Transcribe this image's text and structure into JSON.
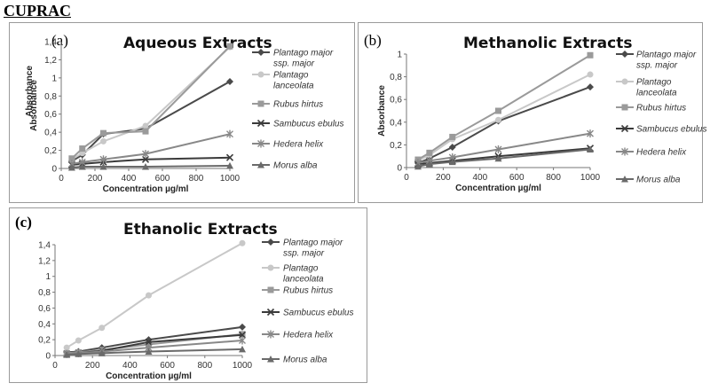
{
  "page_heading": "CUPRAC",
  "chart_data": [
    {
      "type": "line",
      "panel_label": "(a)",
      "title": "Aqueous Extracts",
      "xlabel": "Concentration µg/ml",
      "ylabel": "Absorbance",
      "xlim": [
        0,
        1000
      ],
      "ylim": [
        0,
        1.4
      ],
      "xticks": [
        0,
        200,
        400,
        600,
        800,
        1000
      ],
      "xtick_labels": [
        "0",
        "200",
        "400",
        "600",
        "800",
        "1000"
      ],
      "yticks": [
        0,
        0.2,
        0.4,
        0.6,
        0.8,
        1.0,
        1.2,
        1.4
      ],
      "ytick_labels": [
        "0",
        "0,2",
        "0,4",
        "0,6",
        "0,8",
        "1",
        "1,2",
        "1,4"
      ],
      "grid": false,
      "legend_position": "right",
      "x": [
        62.5,
        125,
        250,
        500,
        1000
      ],
      "series": [
        {
          "name": [
            "Plantago major",
            "ssp. major"
          ],
          "values": [
            0.08,
            0.15,
            0.38,
            0.44,
            0.96
          ],
          "color": "#4a4a4a",
          "marker": "diamond"
        },
        {
          "name": [
            "Plantago",
            "lanceolata"
          ],
          "values": [
            0.1,
            0.17,
            0.3,
            0.47,
            1.34
          ],
          "color": "#c8c8c8",
          "marker": "circle"
        },
        {
          "name": [
            "Rubus hirtus"
          ],
          "values": [
            0.11,
            0.22,
            0.39,
            0.41,
            1.35
          ],
          "color": "#9a9a9a",
          "marker": "square"
        },
        {
          "name": [
            "Sambucus ebulus"
          ],
          "values": [
            0.04,
            0.05,
            0.07,
            0.1,
            0.12
          ],
          "color": "#3a3a3a",
          "marker": "x"
        },
        {
          "name": [
            "Hedera helix"
          ],
          "values": [
            0.05,
            0.07,
            0.1,
            0.16,
            0.38
          ],
          "color": "#888888",
          "marker": "star"
        },
        {
          "name": [
            "Morus alba"
          ],
          "values": [
            0.01,
            0.02,
            0.02,
            0.02,
            0.03
          ],
          "color": "#6a6a6a",
          "marker": "triangle"
        }
      ]
    },
    {
      "type": "line",
      "panel_label": "(b)",
      "title": "Methanolic Extracts",
      "xlabel": "Concentration µg/ml",
      "ylabel": "Absorbance",
      "xlim": [
        0,
        1000
      ],
      "ylim": [
        0,
        1
      ],
      "xticks": [
        0,
        200,
        400,
        600,
        800,
        1000
      ],
      "xtick_labels": [
        "0",
        "200",
        "400",
        "600",
        "800",
        "1000"
      ],
      "yticks": [
        0,
        0.2,
        0.4,
        0.6,
        0.8,
        1
      ],
      "ytick_labels": [
        "0",
        "0,2",
        "0,4",
        "0,6",
        "0,8",
        "1"
      ],
      "grid": false,
      "legend_position": "right",
      "x": [
        62.5,
        125,
        250,
        500,
        1000
      ],
      "series": [
        {
          "name": [
            "Plantago major",
            "ssp. major"
          ],
          "values": [
            0.04,
            0.08,
            0.18,
            0.41,
            0.71
          ],
          "color": "#4a4a4a",
          "marker": "diamond"
        },
        {
          "name": [
            "Plantago",
            "lanceolata"
          ],
          "values": [
            0.06,
            0.11,
            0.25,
            0.42,
            0.82
          ],
          "color": "#c8c8c8",
          "marker": "circle"
        },
        {
          "name": [
            "Rubus hirtus"
          ],
          "values": [
            0.07,
            0.13,
            0.27,
            0.5,
            0.99
          ],
          "color": "#9a9a9a",
          "marker": "square"
        },
        {
          "name": [
            "Sambucus ebulus"
          ],
          "values": [
            0.03,
            0.04,
            0.06,
            0.1,
            0.17
          ],
          "color": "#3a3a3a",
          "marker": "x"
        },
        {
          "name": [
            "Hedera helix"
          ],
          "values": [
            0.04,
            0.06,
            0.09,
            0.16,
            0.3
          ],
          "color": "#888888",
          "marker": "star"
        },
        {
          "name": [
            "Morus alba"
          ],
          "values": [
            0.01,
            0.03,
            0.05,
            0.08,
            0.16
          ],
          "color": "#6a6a6a",
          "marker": "triangle"
        }
      ]
    },
    {
      "type": "line",
      "panel_label": "(c)",
      "title": "Ethanolic Extracts",
      "xlabel": "Concentration µg/ml",
      "ylabel": "Absorbance",
      "xlim": [
        0,
        1000
      ],
      "ylim": [
        0,
        1.4
      ],
      "xticks": [
        0,
        200,
        400,
        600,
        800,
        1000
      ],
      "xtick_labels": [
        "0",
        "200",
        "400",
        "600",
        "800",
        "1000"
      ],
      "yticks": [
        0,
        0.2,
        0.4,
        0.6,
        0.8,
        1.0,
        1.2,
        1.4
      ],
      "ytick_labels": [
        "0",
        "0,2",
        "0,4",
        "0,6",
        "0,8",
        "1",
        "1,2",
        "1,4"
      ],
      "grid": false,
      "legend_position": "right",
      "x": [
        62.5,
        125,
        250,
        500,
        1000
      ],
      "series": [
        {
          "name": [
            "Plantago major",
            "ssp. major"
          ],
          "values": [
            0.04,
            0.05,
            0.1,
            0.2,
            0.36
          ],
          "color": "#4a4a4a",
          "marker": "diamond"
        },
        {
          "name": [
            "Plantago",
            "lanceolata"
          ],
          "values": [
            0.1,
            0.19,
            0.35,
            0.76,
            1.42
          ],
          "color": "#c8c8c8",
          "marker": "circle"
        },
        {
          "name": [
            "Rubus hirtus"
          ],
          "values": [
            0.03,
            0.04,
            0.07,
            0.14,
            0.27
          ],
          "color": "#9a9a9a",
          "marker": "square"
        },
        {
          "name": [
            "Sambucus ebulus"
          ],
          "values": [
            0.02,
            0.03,
            0.06,
            0.17,
            0.26
          ],
          "color": "#3a3a3a",
          "marker": "x"
        },
        {
          "name": [
            "Hedera helix"
          ],
          "values": [
            0.02,
            0.03,
            0.05,
            0.1,
            0.19
          ],
          "color": "#888888",
          "marker": "star"
        },
        {
          "name": [
            "Morus alba"
          ],
          "values": [
            0.01,
            0.02,
            0.03,
            0.05,
            0.08
          ],
          "color": "#6a6a6a",
          "marker": "triangle"
        }
      ]
    }
  ]
}
